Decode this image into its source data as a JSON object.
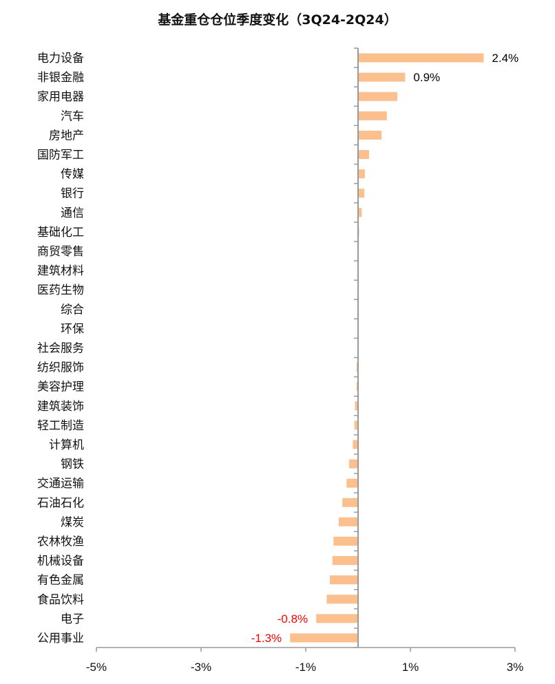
{
  "title": "基金重仓仓位季度变化（3Q24-2Q24）",
  "chart_data": {
    "type": "bar",
    "orientation": "horizontal",
    "title": "基金重仓仓位季度变化（3Q24-2Q24）",
    "xlabel": "",
    "ylabel": "",
    "xlim": [
      -5,
      3
    ],
    "x_ticks": [
      "-5%",
      "-3%",
      "-1%",
      "1%",
      "3%"
    ],
    "x_tick_values": [
      -5,
      -3,
      -1,
      1,
      3
    ],
    "grid": false,
    "legend": null,
    "bar_color": "#FBC08E",
    "categories": [
      "电力设备",
      "非银金融",
      "家用电器",
      "汽车",
      "房地产",
      "国防军工",
      "传媒",
      "银行",
      "通信",
      "基础化工",
      "商贸零售",
      "建筑材料",
      "医药生物",
      "综合",
      "环保",
      "社会服务",
      "纺织服饰",
      "美容护理",
      "建筑装饰",
      "轻工制造",
      "计算机",
      "钢铁",
      "交通运输",
      "石油石化",
      "煤炭",
      "农林牧渔",
      "机械设备",
      "有色金属",
      "食品饮料",
      "电子",
      "公用事业"
    ],
    "values": [
      2.4,
      0.9,
      0.75,
      0.55,
      0.45,
      0.21,
      0.13,
      0.12,
      0.07,
      0.02,
      0.01,
      0.005,
      0.0,
      0.0,
      -0.005,
      -0.01,
      -0.03,
      -0.03,
      -0.06,
      -0.07,
      -0.1,
      -0.17,
      -0.22,
      -0.3,
      -0.37,
      -0.47,
      -0.49,
      -0.54,
      -0.6,
      -0.8,
      -1.3
    ],
    "data_labels": [
      {
        "category": "电力设备",
        "text": "2.4%",
        "color": "#000000"
      },
      {
        "category": "非银金融",
        "text": "0.9%",
        "color": "#000000"
      },
      {
        "category": "电子",
        "text": "-0.8%",
        "color": "#FF0000"
      },
      {
        "category": "公用事业",
        "text": "-1.3%",
        "color": "#FF0000"
      }
    ],
    "unit": "%"
  }
}
